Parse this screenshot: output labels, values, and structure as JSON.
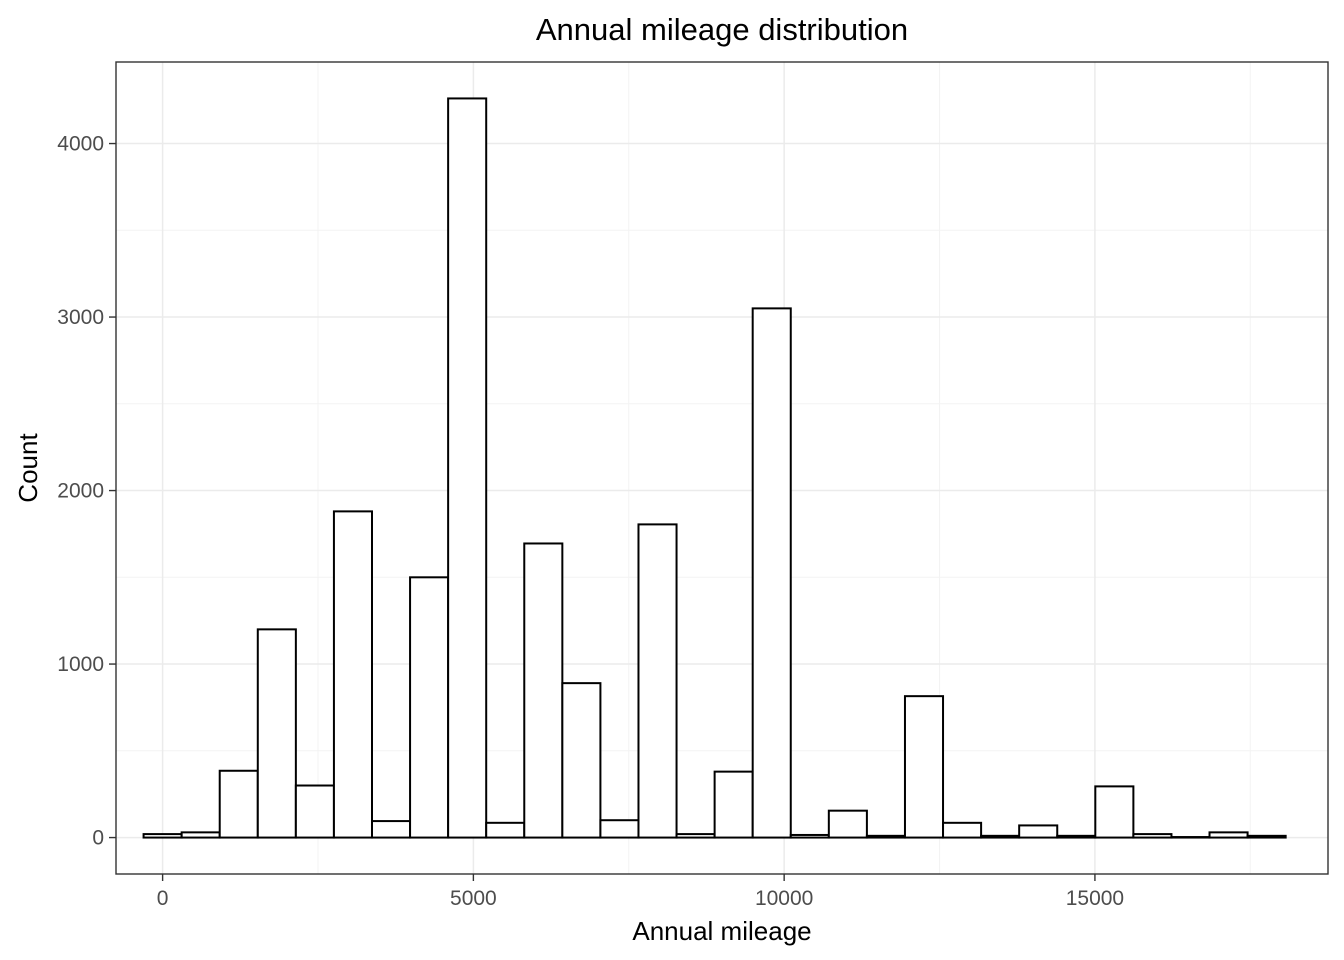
{
  "chart_data": {
    "type": "bar",
    "title": "Annual mileage distribution",
    "xlabel": "Annual mileage",
    "ylabel": "Count",
    "xlim": [
      -750,
      18750
    ],
    "ylim": [
      -210,
      4470
    ],
    "x_ticks": [
      0,
      5000,
      10000,
      15000
    ],
    "y_ticks": [
      0,
      1000,
      2000,
      3000,
      4000
    ],
    "x_tick_labels": [
      "0",
      "5000",
      "10000",
      "15000"
    ],
    "y_tick_labels": [
      "0",
      "1000",
      "2000",
      "3000",
      "4000"
    ],
    "grid": true,
    "bin_width": 612.5,
    "bins": [
      {
        "start": -306.25,
        "end": 306.25,
        "count": 20
      },
      {
        "start": 306.25,
        "end": 918.75,
        "count": 30
      },
      {
        "start": 918.75,
        "end": 1531.25,
        "count": 385
      },
      {
        "start": 1531.25,
        "end": 2143.75,
        "count": 1200
      },
      {
        "start": 2143.75,
        "end": 2756.25,
        "count": 300
      },
      {
        "start": 2756.25,
        "end": 3368.75,
        "count": 1880
      },
      {
        "start": 3368.75,
        "end": 3981.25,
        "count": 95
      },
      {
        "start": 3981.25,
        "end": 4593.75,
        "count": 1500
      },
      {
        "start": 4593.75,
        "end": 5206.25,
        "count": 4260
      },
      {
        "start": 5206.25,
        "end": 5818.75,
        "count": 85
      },
      {
        "start": 5818.75,
        "end": 6431.25,
        "count": 1695
      },
      {
        "start": 6431.25,
        "end": 7043.75,
        "count": 890
      },
      {
        "start": 7043.75,
        "end": 7656.25,
        "count": 100
      },
      {
        "start": 7656.25,
        "end": 8268.75,
        "count": 1805
      },
      {
        "start": 8268.75,
        "end": 8881.25,
        "count": 20
      },
      {
        "start": 8881.25,
        "end": 9493.75,
        "count": 380
      },
      {
        "start": 9493.75,
        "end": 10106.25,
        "count": 3050
      },
      {
        "start": 10106.25,
        "end": 10718.75,
        "count": 15
      },
      {
        "start": 10718.75,
        "end": 11331.25,
        "count": 155
      },
      {
        "start": 11331.25,
        "end": 11943.75,
        "count": 10
      },
      {
        "start": 11943.75,
        "end": 12556.25,
        "count": 815
      },
      {
        "start": 12556.25,
        "end": 13168.75,
        "count": 85
      },
      {
        "start": 13168.75,
        "end": 13781.25,
        "count": 10
      },
      {
        "start": 13781.25,
        "end": 14393.75,
        "count": 70
      },
      {
        "start": 14393.75,
        "end": 15006.25,
        "count": 10
      },
      {
        "start": 15006.25,
        "end": 15618.75,
        "count": 295
      },
      {
        "start": 15618.75,
        "end": 16231.25,
        "count": 20
      },
      {
        "start": 16231.25,
        "end": 16843.75,
        "count": 3
      },
      {
        "start": 16843.75,
        "end": 17456.25,
        "count": 30
      },
      {
        "start": 17456.25,
        "end": 18068.75,
        "count": 10
      }
    ],
    "bar_fill": "#ffffff",
    "bar_stroke": "#000000",
    "grid_color": "#ebebeb",
    "panel_border_color": "#333333"
  }
}
